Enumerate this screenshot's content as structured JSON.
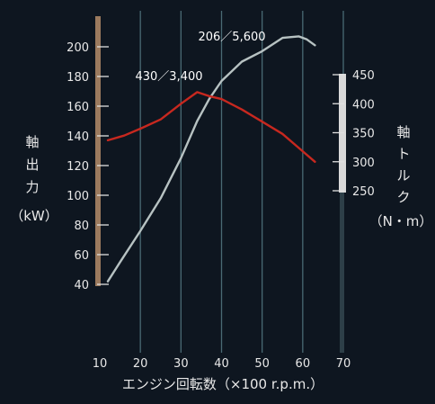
{
  "chart_data": {
    "type": "line",
    "xlabel": "エンジン回転数（×100 r.p.m.）",
    "x_ticks": [
      10,
      20,
      30,
      40,
      50,
      60,
      70
    ],
    "xlim": [
      10,
      70
    ],
    "y_left": {
      "label_chars": [
        "軸",
        "出",
        "力"
      ],
      "unit": "（kW）",
      "ticks": [
        40,
        60,
        80,
        100,
        120,
        140,
        160,
        180,
        200
      ],
      "lim": [
        40,
        200
      ]
    },
    "y_right": {
      "label_chars": [
        "軸",
        "ト",
        "ル",
        "ク"
      ],
      "unit": "（N・m）",
      "ticks": [
        250,
        300,
        350,
        400,
        450
      ],
      "lim": [
        250,
        450
      ]
    },
    "grid": true,
    "series": [
      {
        "axis": "left",
        "color": "#b7c2c2",
        "points": [
          [
            12,
            42
          ],
          [
            15,
            55
          ],
          [
            20,
            76
          ],
          [
            25,
            98
          ],
          [
            30,
            125
          ],
          [
            34,
            150
          ],
          [
            37,
            165
          ],
          [
            40,
            177
          ],
          [
            45,
            190
          ],
          [
            50,
            197
          ],
          [
            55,
            206
          ],
          [
            59,
            207
          ],
          [
            61,
            205
          ],
          [
            63,
            201
          ]
        ]
      },
      {
        "axis": "right",
        "color": "#c7281f",
        "points": [
          [
            12,
            337
          ],
          [
            16,
            345
          ],
          [
            20,
            357
          ],
          [
            25,
            373
          ],
          [
            30,
            400
          ],
          [
            34,
            420
          ],
          [
            37,
            413
          ],
          [
            40,
            408
          ],
          [
            45,
            390
          ],
          [
            50,
            369
          ],
          [
            55,
            348
          ],
          [
            60,
            318
          ],
          [
            63,
            300
          ]
        ]
      }
    ],
    "annotations": [
      {
        "text": "206／5,600"
      },
      {
        "text": "430／3,400"
      }
    ]
  }
}
